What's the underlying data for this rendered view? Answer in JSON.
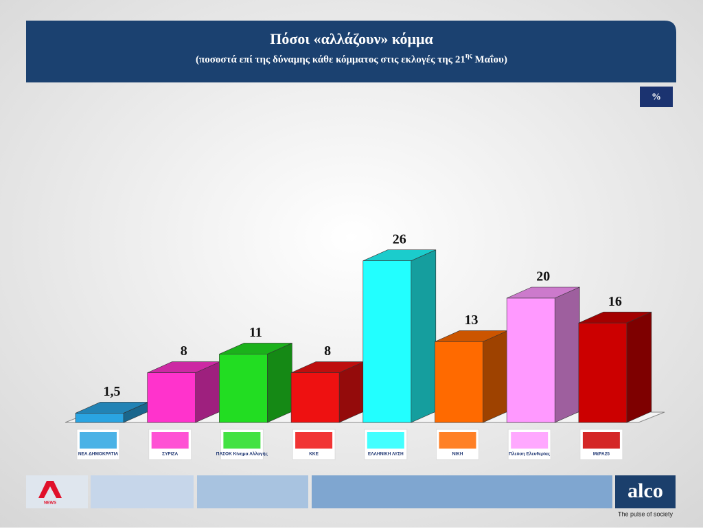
{
  "header": {
    "title": "Πόσοι «αλλάζουν» κόμμα",
    "subtitle": [
      "(ποσοστά επί της δύναμης κάθε κόμματος στις εκλογές της 21",
      "ης",
      " Μαΐου)"
    ]
  },
  "unit_badge": "%",
  "chart_data": {
    "type": "bar3d",
    "categories": [
      "ΝΕΑ ΔΗΜΟΚΡΑΤΙΑ",
      "ΣΥΡΙΖΑ",
      "ΠΑΣΟΚ Κίνημα Αλλαγής",
      "ΚΚΕ",
      "ΕΛΛΗΝΙΚΗ ΛΥΣΗ",
      "ΝΙΚΗ",
      "Πλεύση Ελευθερίας",
      "ΜέΡΑ25"
    ],
    "values": [
      1.5,
      8,
      11,
      8,
      26,
      13,
      20,
      16
    ],
    "value_labels": [
      "1,5",
      "8",
      "11",
      "8",
      "26",
      "13",
      "20",
      "16"
    ],
    "colors": [
      "#2aa4e2",
      "#ff33cc",
      "#22dd22",
      "#ee1111",
      "#22ffff",
      "#ff6a00",
      "#ff99ff",
      "#cc0000"
    ]
  },
  "footer": {
    "channel": "NEWS",
    "brand": "alco",
    "tagline": "The pulse of society"
  }
}
